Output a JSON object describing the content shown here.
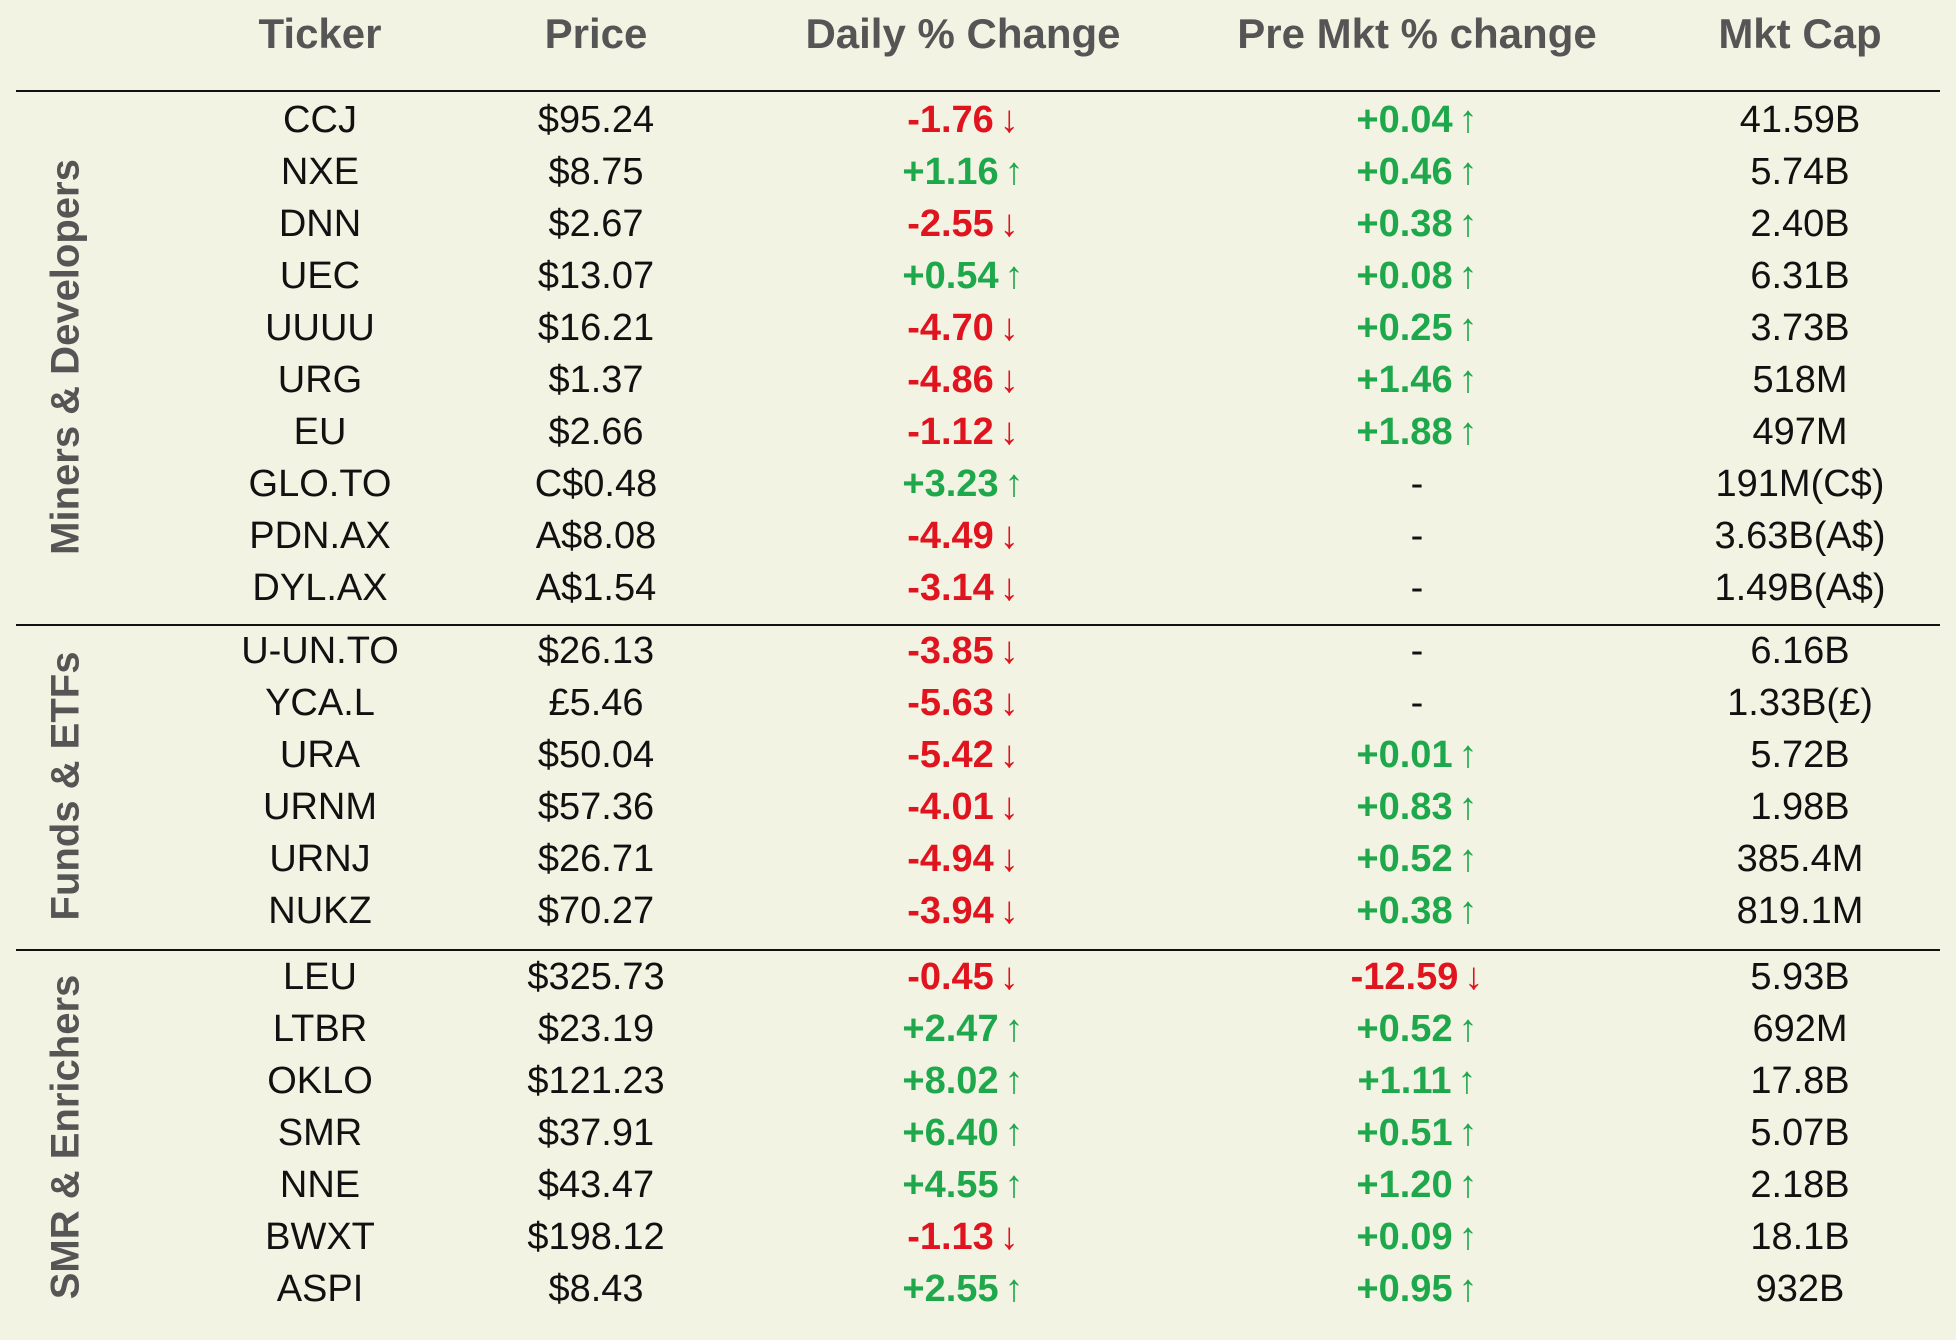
{
  "columns": {
    "ticker": "Ticker",
    "price": "Price",
    "daily": "Daily % Change",
    "premkt": "Pre Mkt % change",
    "mktcap": "Mkt Cap"
  },
  "colors": {
    "up": "#1fa84b",
    "down": "#e0141e",
    "background": "#f3f3e4"
  },
  "arrows": {
    "up": "↑",
    "down": "↓"
  },
  "sections": [
    {
      "label": "Miners & Developers",
      "rows": [
        {
          "ticker": "CCJ",
          "price": "$95.24",
          "daily": "-1.76",
          "daily_dir": "down",
          "premkt": "+0.04",
          "premkt_dir": "up",
          "mktcap": "41.59B"
        },
        {
          "ticker": "NXE",
          "price": "$8.75",
          "daily": "+1.16",
          "daily_dir": "up",
          "premkt": "+0.46",
          "premkt_dir": "up",
          "mktcap": "5.74B"
        },
        {
          "ticker": "DNN",
          "price": "$2.67",
          "daily": "-2.55",
          "daily_dir": "down",
          "premkt": "+0.38",
          "premkt_dir": "up",
          "mktcap": "2.40B"
        },
        {
          "ticker": "UEC",
          "price": "$13.07",
          "daily": "+0.54",
          "daily_dir": "up",
          "premkt": "+0.08",
          "premkt_dir": "up",
          "mktcap": "6.31B"
        },
        {
          "ticker": "UUUU",
          "price": "$16.21",
          "daily": "-4.70",
          "daily_dir": "down",
          "premkt": "+0.25",
          "premkt_dir": "up",
          "mktcap": "3.73B"
        },
        {
          "ticker": "URG",
          "price": "$1.37",
          "daily": "-4.86",
          "daily_dir": "down",
          "premkt": "+1.46",
          "premkt_dir": "up",
          "mktcap": "518M"
        },
        {
          "ticker": "EU",
          "price": "$2.66",
          "daily": "-1.12",
          "daily_dir": "down",
          "premkt": "+1.88",
          "premkt_dir": "up",
          "mktcap": "497M"
        },
        {
          "ticker": "GLO.TO",
          "price": "C$0.48",
          "daily": "+3.23",
          "daily_dir": "up",
          "premkt": "-",
          "premkt_dir": "none",
          "mktcap": "191M(C$)"
        },
        {
          "ticker": "PDN.AX",
          "price": "A$8.08",
          "daily": "-4.49",
          "daily_dir": "down",
          "premkt": "-",
          "premkt_dir": "none",
          "mktcap": "3.63B(A$)"
        },
        {
          "ticker": "DYL.AX",
          "price": "A$1.54",
          "daily": "-3.14",
          "daily_dir": "down",
          "premkt": "-",
          "premkt_dir": "none",
          "mktcap": "1.49B(A$)"
        }
      ]
    },
    {
      "label": "Funds & ETFs",
      "rows": [
        {
          "ticker": "U-UN.TO",
          "price": "$26.13",
          "daily": "-3.85",
          "daily_dir": "down",
          "premkt": "-",
          "premkt_dir": "none",
          "mktcap": "6.16B"
        },
        {
          "ticker": "YCA.L",
          "price": "£5.46",
          "daily": "-5.63",
          "daily_dir": "down",
          "premkt": "-",
          "premkt_dir": "none",
          "mktcap": "1.33B(£)"
        },
        {
          "ticker": "URA",
          "price": "$50.04",
          "daily": "-5.42",
          "daily_dir": "down",
          "premkt": "+0.01",
          "premkt_dir": "up",
          "mktcap": "5.72B"
        },
        {
          "ticker": "URNM",
          "price": "$57.36",
          "daily": "-4.01",
          "daily_dir": "down",
          "premkt": "+0.83",
          "premkt_dir": "up",
          "mktcap": "1.98B"
        },
        {
          "ticker": "URNJ",
          "price": "$26.71",
          "daily": "-4.94",
          "daily_dir": "down",
          "premkt": "+0.52",
          "premkt_dir": "up",
          "mktcap": "385.4M"
        },
        {
          "ticker": "NUKZ",
          "price": "$70.27",
          "daily": "-3.94",
          "daily_dir": "down",
          "premkt": "+0.38",
          "premkt_dir": "up",
          "mktcap": "819.1M"
        }
      ]
    },
    {
      "label": "SMR & Enrichers",
      "rows": [
        {
          "ticker": "LEU",
          "price": "$325.73",
          "daily": "-0.45",
          "daily_dir": "down",
          "premkt": "-12.59",
          "premkt_dir": "down",
          "mktcap": "5.93B"
        },
        {
          "ticker": "LTBR",
          "price": "$23.19",
          "daily": "+2.47",
          "daily_dir": "up",
          "premkt": "+0.52",
          "premkt_dir": "up",
          "mktcap": "692M"
        },
        {
          "ticker": "OKLO",
          "price": "$121.23",
          "daily": "+8.02",
          "daily_dir": "up",
          "premkt": "+1.11",
          "premkt_dir": "up",
          "mktcap": "17.8B"
        },
        {
          "ticker": "SMR",
          "price": "$37.91",
          "daily": "+6.40",
          "daily_dir": "up",
          "premkt": "+0.51",
          "premkt_dir": "up",
          "mktcap": "5.07B"
        },
        {
          "ticker": "NNE",
          "price": "$43.47",
          "daily": "+4.55",
          "daily_dir": "up",
          "premkt": "+1.20",
          "premkt_dir": "up",
          "mktcap": "2.18B"
        },
        {
          "ticker": "BWXT",
          "price": "$198.12",
          "daily": "-1.13",
          "daily_dir": "down",
          "premkt": "+0.09",
          "premkt_dir": "up",
          "mktcap": "18.1B"
        },
        {
          "ticker": "ASPI",
          "price": "$8.43",
          "daily": "+2.55",
          "daily_dir": "up",
          "premkt": "+0.95",
          "premkt_dir": "up",
          "mktcap": "932B"
        }
      ]
    }
  ]
}
